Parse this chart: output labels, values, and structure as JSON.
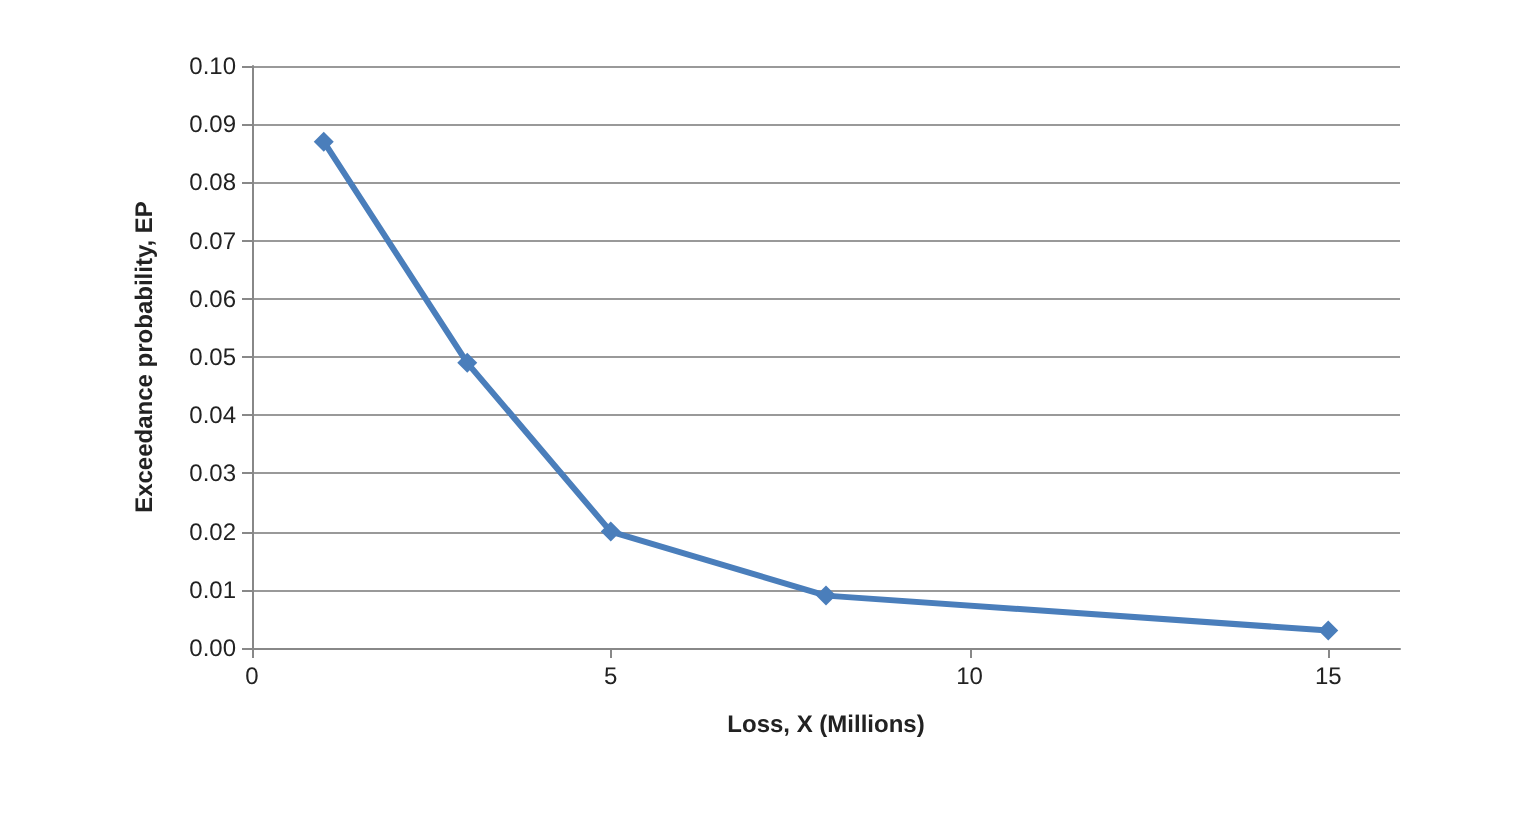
{
  "chart_data": {
    "type": "line",
    "xlabel": "Loss, X (Millions)",
    "ylabel": "Exceedance probability, EP",
    "x": [
      1,
      3,
      5,
      8,
      15
    ],
    "series": [
      {
        "color": "#4a7ebb",
        "values": [
          0.087,
          0.049,
          0.02,
          0.009,
          0.003
        ]
      }
    ],
    "xlim": [
      0,
      16
    ],
    "xticks": [
      0,
      5,
      10,
      15
    ],
    "ylim": [
      0,
      0.1
    ],
    "yticks": [
      {
        "value": 0,
        "label": "0.00"
      },
      {
        "value": 0.01,
        "label": "0.01"
      },
      {
        "value": 0.02,
        "label": "0.02"
      },
      {
        "value": 0.03,
        "label": "0.03"
      },
      {
        "value": 0.04,
        "label": "0.04"
      },
      {
        "value": 0.05,
        "label": "0.05"
      },
      {
        "value": 0.06,
        "label": "0.06"
      },
      {
        "value": 0.07,
        "label": "0.07"
      },
      {
        "value": 0.08,
        "label": "0.08"
      },
      {
        "value": 0.09,
        "label": "0.09"
      },
      {
        "value": 0.1,
        "label": "0.10"
      }
    ],
    "grid": "y",
    "marker": "diamond",
    "line_style": "solid"
  }
}
